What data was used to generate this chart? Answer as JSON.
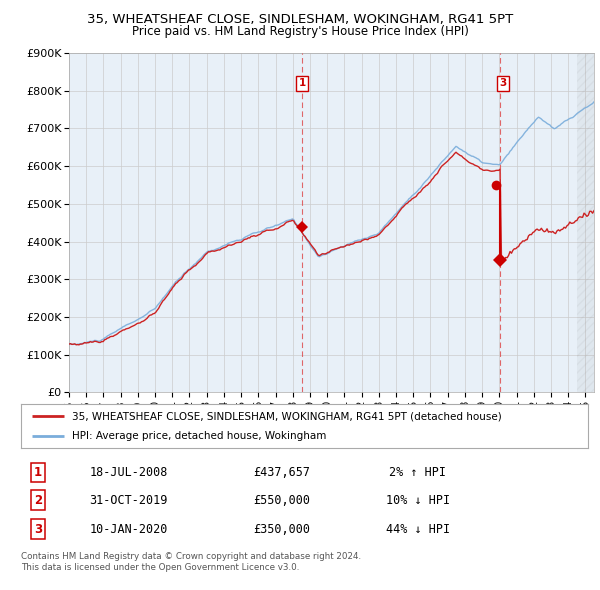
{
  "title": "35, WHEATSHEAF CLOSE, SINDLESHAM, WOKINGHAM, RG41 5PT",
  "subtitle": "Price paid vs. HM Land Registry's House Price Index (HPI)",
  "ylim": [
    0,
    900000
  ],
  "xlim_start": 1995.0,
  "xlim_end": 2025.5,
  "plot_bg_color": "#e8f0f8",
  "hpi_line_color": "#7aaddb",
  "price_line_color": "#cc2222",
  "transaction_color": "#cc0000",
  "dashed_line_color": "#dd4444",
  "legend_line1": "35, WHEATSHEAF CLOSE, SINDLESHAM, WOKINGHAM, RG41 5PT (detached house)",
  "legend_line2": "HPI: Average price, detached house, Wokingham",
  "transactions": [
    {
      "num": 1,
      "date_label": "18-JUL-2008",
      "price_label": "£437,657",
      "pct_label": "2% ↑ HPI",
      "year": 2008.54,
      "price": 437657
    },
    {
      "num": 2,
      "date_label": "31-OCT-2019",
      "price_label": "£550,000",
      "pct_label": "10% ↓ HPI",
      "year": 2019.83,
      "price": 550000
    },
    {
      "num": 3,
      "date_label": "10-JAN-2020",
      "price_label": "£350,000",
      "pct_label": "44% ↓ HPI",
      "year": 2020.03,
      "price": 350000
    }
  ],
  "footer_line1": "Contains HM Land Registry data © Crown copyright and database right 2024.",
  "footer_line2": "This data is licensed under the Open Government Licence v3.0."
}
